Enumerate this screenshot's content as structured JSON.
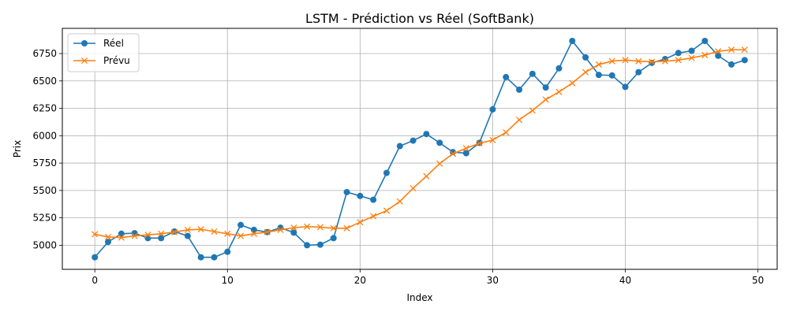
{
  "chart_data": {
    "type": "line",
    "title": "LSTM - Prédiction vs Réel (SoftBank)",
    "xlabel": "Index",
    "ylabel": "Prix",
    "xlim": [
      -2.45,
      51.45
    ],
    "ylim": [
      4780,
      6980
    ],
    "xticks": [
      0,
      10,
      20,
      30,
      40,
      50
    ],
    "yticks": [
      5000,
      5250,
      5500,
      5750,
      6000,
      6250,
      6500,
      6750
    ],
    "grid": true,
    "legend_position": "top-left",
    "x": [
      0,
      1,
      2,
      3,
      4,
      5,
      6,
      7,
      8,
      9,
      10,
      11,
      12,
      13,
      14,
      15,
      16,
      17,
      18,
      19,
      20,
      21,
      22,
      23,
      24,
      25,
      26,
      27,
      28,
      29,
      30,
      31,
      32,
      33,
      34,
      35,
      36,
      37,
      38,
      39,
      40,
      41,
      42,
      43,
      44,
      45,
      46,
      47,
      48,
      49
    ],
    "series": [
      {
        "name": "Réel",
        "color": "#1f77b4",
        "marker": "circle",
        "values": [
          4890,
          5030,
          5105,
          5110,
          5065,
          5065,
          5125,
          5085,
          4890,
          4890,
          4940,
          5185,
          5140,
          5120,
          5160,
          5115,
          5000,
          5005,
          5065,
          5485,
          5450,
          5415,
          5660,
          5905,
          5955,
          6015,
          5935,
          5850,
          5840,
          5935,
          6240,
          6535,
          6420,
          6565,
          6440,
          6615,
          6865,
          6715,
          6555,
          6550,
          6445,
          6580,
          6665,
          6700,
          6755,
          6775,
          6865,
          6730,
          6650,
          6690
        ]
      },
      {
        "name": "Prévu",
        "color": "#ff7f0e",
        "marker": "x",
        "values": [
          5100,
          5075,
          5070,
          5085,
          5095,
          5105,
          5120,
          5140,
          5145,
          5125,
          5105,
          5085,
          5105,
          5120,
          5140,
          5160,
          5170,
          5165,
          5155,
          5155,
          5210,
          5265,
          5315,
          5400,
          5520,
          5630,
          5745,
          5835,
          5885,
          5930,
          5960,
          6030,
          6145,
          6230,
          6330,
          6400,
          6480,
          6580,
          6650,
          6680,
          6690,
          6680,
          6675,
          6680,
          6690,
          6710,
          6735,
          6770,
          6785,
          6785
        ]
      }
    ]
  }
}
